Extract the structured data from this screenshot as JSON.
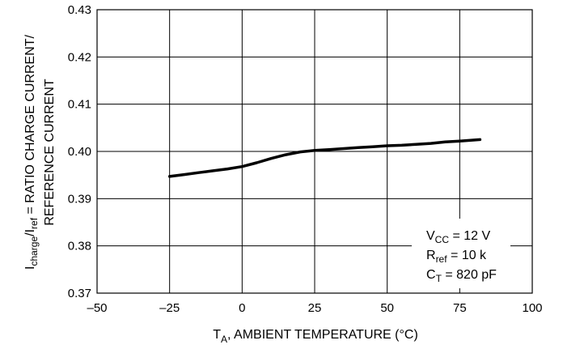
{
  "chart_data": {
    "type": "line",
    "title": "",
    "xlabel": {
      "main": "T",
      "sub": "A",
      "rest": ", AMBIENT TEMPERATURE (°C)"
    },
    "ylabel": {
      "line1_a": "I",
      "line1_sub1": "charge",
      "line1_b": "/I",
      "line1_sub2": "ref",
      "line1_c": " = RATIO CHARGE CURRENT/",
      "line2": "REFERENCE CURRENT"
    },
    "xlim": [
      -50,
      100
    ],
    "ylim": [
      0.37,
      0.43
    ],
    "xticks": [
      -50,
      -25,
      0,
      25,
      50,
      75,
      100
    ],
    "xtick_labels": [
      "–50",
      "–25",
      "0",
      "25",
      "50",
      "75",
      "100"
    ],
    "yticks": [
      0.37,
      0.38,
      0.39,
      0.4,
      0.41,
      0.42,
      0.43
    ],
    "ytick_labels": [
      "0.37",
      "0.38",
      "0.39",
      "0.40",
      "0.41",
      "0.42",
      "0.43"
    ],
    "grid": true,
    "series": [
      {
        "x": [
          -25,
          -20,
          -15,
          -10,
          -5,
          0,
          5,
          10,
          15,
          20,
          25,
          30,
          35,
          40,
          45,
          50,
          55,
          60,
          65,
          70,
          75,
          82
        ],
        "y": [
          0.3947,
          0.3951,
          0.3955,
          0.3959,
          0.3963,
          0.3968,
          0.3976,
          0.3985,
          0.3993,
          0.3999,
          0.4002,
          0.4004,
          0.4006,
          0.4008,
          0.401,
          0.4012,
          0.4013,
          0.4015,
          0.4017,
          0.402,
          0.4022,
          0.4025
        ]
      }
    ],
    "conditions": [
      {
        "main": "V",
        "sub": "CC",
        "rest": " = 12 V"
      },
      {
        "main": "R",
        "sub": "ref",
        "rest": " = 10 k"
      },
      {
        "main": "C",
        "sub": "T",
        "rest": " = 820 pF"
      }
    ]
  }
}
